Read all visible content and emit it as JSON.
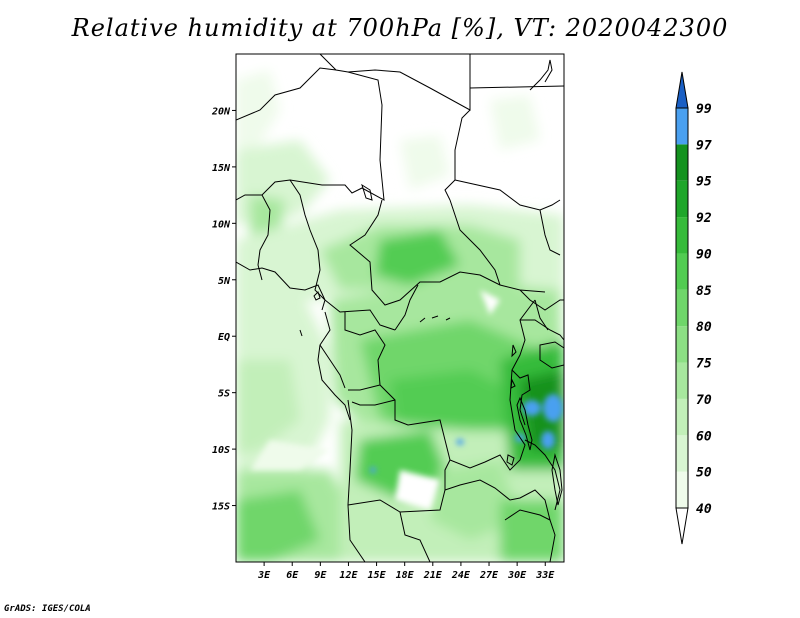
{
  "title": "Relative humidity at 700hPa [%], VT: 2020042300",
  "credit": "GrADS: IGES/COLA",
  "map": {
    "lon_range": [
      0,
      35
    ],
    "lat_range": [
      -20,
      25
    ],
    "lat_ticks": [
      "20N",
      "15N",
      "10N",
      "5N",
      "EQ",
      "5S",
      "10S",
      "15S"
    ],
    "lat_tick_values": [
      20,
      15,
      10,
      5,
      0,
      -5,
      -10,
      -15
    ],
    "lon_ticks": [
      "3E",
      "6E",
      "9E",
      "12E",
      "15E",
      "18E",
      "21E",
      "24E",
      "27E",
      "30E",
      "33E"
    ],
    "lon_tick_values": [
      3,
      6,
      9,
      12,
      15,
      18,
      21,
      24,
      27,
      30,
      33
    ]
  },
  "colorbar": {
    "levels": [
      "40",
      "50",
      "60",
      "70",
      "75",
      "80",
      "85",
      "90",
      "92",
      "95",
      "97",
      "99"
    ],
    "colors": [
      "#effbeb",
      "#d8f5d2",
      "#c2efb9",
      "#a7e79e",
      "#8cdf84",
      "#6fd66a",
      "#52cc52",
      "#36bb3a",
      "#1fa62a",
      "#14921f",
      "#4aa0f0",
      "#2472d8",
      "#1a5fc4"
    ],
    "under_color": "#ffffff",
    "over_color": "#1a5fc4"
  }
}
